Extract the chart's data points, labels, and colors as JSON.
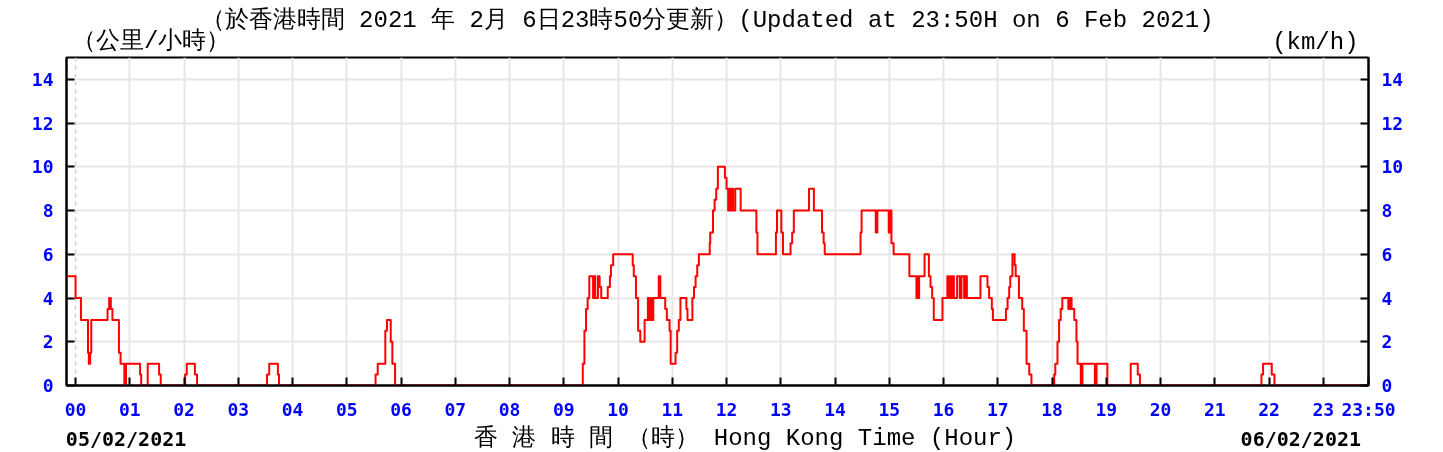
{
  "chart_data": {
    "type": "step",
    "title": "（於香港時間 2021 年 2月 6日23時50分更新）(Updated at 23:50H on 6 Feb 2021)",
    "xlabel": "香 港 時 間 （時） Hong Kong Time (Hour)",
    "ylabel": "（公里/小時）",
    "y2label": "(km/h)",
    "annotations": [
      "05/02/2021",
      "06/02/2021"
    ],
    "xlim": [
      -0.1667,
      23.8333
    ],
    "xticks": [
      {
        "value": 0,
        "label": "00"
      },
      {
        "value": 1,
        "label": "01"
      },
      {
        "value": 2,
        "label": "02"
      },
      {
        "value": 3,
        "label": "03"
      },
      {
        "value": 4,
        "label": "04"
      },
      {
        "value": 5,
        "label": "05"
      },
      {
        "value": 6,
        "label": "06"
      },
      {
        "value": 7,
        "label": "07"
      },
      {
        "value": 8,
        "label": "08"
      },
      {
        "value": 9,
        "label": "09"
      },
      {
        "value": 10,
        "label": "10"
      },
      {
        "value": 11,
        "label": "11"
      },
      {
        "value": 12,
        "label": "12"
      },
      {
        "value": 13,
        "label": "13"
      },
      {
        "value": 14,
        "label": "14"
      },
      {
        "value": 15,
        "label": "15"
      },
      {
        "value": 16,
        "label": "16"
      },
      {
        "value": 17,
        "label": "17"
      },
      {
        "value": 18,
        "label": "18"
      },
      {
        "value": 19,
        "label": "19"
      },
      {
        "value": 20,
        "label": "20"
      },
      {
        "value": 21,
        "label": "21"
      },
      {
        "value": 22,
        "label": "22"
      },
      {
        "value": 23,
        "label": "23"
      },
      {
        "value": 23.8333,
        "label": "23:50"
      }
    ],
    "ylim": [
      0,
      15
    ],
    "yticks": [
      0,
      2,
      4,
      6,
      8,
      10,
      12,
      14
    ],
    "y2lim": [
      0,
      15
    ],
    "y2ticks": [
      0,
      2,
      4,
      6,
      8,
      10,
      12,
      14
    ],
    "grid": true,
    "ref_lines": [
      {
        "axis": "x",
        "value": 0,
        "color": "#d0d0d0",
        "line_style": "dashed"
      }
    ],
    "series": [
      {
        "color": "#ff0000",
        "x": [
          -0.1667,
          0.0,
          0.1,
          0.23,
          0.245,
          0.27,
          0.29,
          0.59,
          0.62,
          0.65,
          0.68,
          0.8,
          0.83,
          0.9,
          0.93,
          1.19,
          1.21,
          1.33,
          1.54,
          1.57,
          2.02,
          2.05,
          2.2,
          2.24,
          3.53,
          3.57,
          3.73,
          3.75,
          5.53,
          5.57,
          5.71,
          5.74,
          5.81,
          5.84,
          5.89,
          9.35,
          9.38,
          9.41,
          9.44,
          9.47,
          9.54,
          9.56,
          9.58,
          9.63,
          9.66,
          9.69,
          9.81,
          9.85,
          9.87,
          9.91,
          10.27,
          10.29,
          10.33,
          10.37,
          10.41,
          10.49,
          10.55,
          10.57,
          10.6,
          10.62,
          10.65,
          10.75,
          10.78,
          10.87,
          10.9,
          10.95,
          10.97,
          11.06,
          11.09,
          11.12,
          11.15,
          11.26,
          11.28,
          11.37,
          11.4,
          11.43,
          11.46,
          11.49,
          11.69,
          11.7,
          11.75,
          11.78,
          11.81,
          11.84,
          11.97,
          12.0,
          12.03,
          12.05,
          12.07,
          12.09,
          12.12,
          12.16,
          12.26,
          12.55,
          12.57,
          12.91,
          12.93,
          13.01,
          13.04,
          13.18,
          13.21,
          13.24,
          13.52,
          13.61,
          13.76,
          13.79,
          13.81,
          14.47,
          14.49,
          14.75,
          14.78,
          14.99,
          15.01,
          15.04,
          15.08,
          15.37,
          15.5,
          15.52,
          15.53,
          15.55,
          15.65,
          15.73,
          15.76,
          15.79,
          15.82,
          15.98,
          16.07,
          16.09,
          16.12,
          16.14,
          16.17,
          16.19,
          16.25,
          16.3,
          16.33,
          16.38,
          16.4,
          16.43,
          16.68,
          16.81,
          16.84,
          16.89,
          16.91,
          17.15,
          17.18,
          17.21,
          17.23,
          17.27,
          17.31,
          17.33,
          17.39,
          17.45,
          17.48,
          17.53,
          17.58,
          17.62,
          18.04,
          18.06,
          18.1,
          18.13,
          18.16,
          18.19,
          18.3,
          18.33,
          18.36,
          18.41,
          18.45,
          18.47,
          18.53,
          18.56,
          18.79,
          18.82,
          19.02,
          19.45,
          19.58,
          19.62,
          21.86,
          21.89,
          22.05,
          22.1,
          23.8333
        ],
        "values": [
          5,
          4,
          3,
          1.5,
          1,
          1.5,
          3,
          3.5,
          4,
          3.5,
          3,
          1.5,
          1,
          0,
          1,
          0.5,
          0,
          1,
          0.5,
          0,
          0.5,
          1,
          0.5,
          0,
          0.5,
          1,
          0.5,
          0,
          0.5,
          1,
          2.5,
          3,
          2,
          1,
          0,
          1,
          2.5,
          3.5,
          4,
          5,
          4,
          5,
          4,
          5,
          4.5,
          4,
          4.5,
          5,
          5.5,
          6,
          5.5,
          5,
          4,
          2.5,
          2,
          3,
          4,
          3,
          4,
          3,
          4,
          5,
          4,
          3.5,
          3,
          2.5,
          1,
          1.5,
          2.5,
          3,
          4,
          3.5,
          3,
          4,
          4.5,
          5,
          5.5,
          6,
          6.5,
          7,
          8,
          8.5,
          9,
          10,
          9.5,
          9,
          8,
          9,
          8,
          9,
          8,
          9,
          8,
          7,
          6,
          7,
          8,
          7,
          6,
          6.5,
          7,
          8,
          9,
          8,
          7,
          6.5,
          6,
          7,
          8,
          7,
          8,
          7,
          8,
          6.5,
          6,
          5,
          4,
          5,
          4,
          5,
          6,
          5,
          4.5,
          4,
          3,
          4,
          5,
          4,
          5,
          4,
          5,
          4,
          5,
          4,
          5,
          4,
          5,
          4,
          5,
          4.5,
          4,
          3.5,
          3,
          3.5,
          4,
          4.5,
          5,
          6,
          5.5,
          5,
          4,
          3.5,
          2.5,
          1,
          0.5,
          0,
          0.5,
          1,
          2,
          3,
          3.5,
          4,
          3.5,
          4,
          3.5,
          3,
          2,
          1,
          0,
          1,
          0,
          1,
          0,
          1,
          0.5,
          0,
          0.5,
          1,
          0.5,
          0,
          0
        ]
      }
    ]
  }
}
